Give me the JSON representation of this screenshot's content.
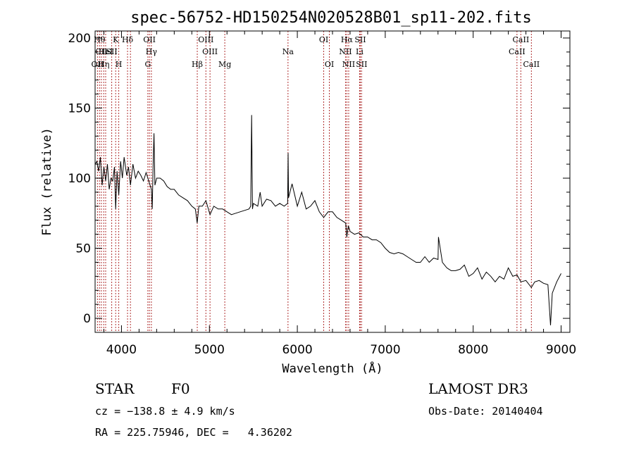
{
  "chart_data": {
    "type": "line",
    "title": "spec-56752-HD150254N020528B01_sp11-202.fits",
    "xlabel": "Wavelength (Å)",
    "ylabel": "Flux (relative)",
    "xlim": [
      3700,
      9100
    ],
    "ylim": [
      -10,
      205
    ],
    "xticks": [
      4000,
      5000,
      6000,
      7000,
      8000,
      9000
    ],
    "yticks": [
      0,
      50,
      100,
      150,
      200
    ],
    "grid": false,
    "line_color": "#000000",
    "marker_color": "#b03030",
    "series": [
      {
        "x": [
          3700,
          3720,
          3740,
          3760,
          3780,
          3800,
          3820,
          3840,
          3860,
          3880,
          3900,
          3920,
          3934,
          3950,
          3969,
          3990,
          4010,
          4030,
          4060,
          4080,
          4102,
          4130,
          4160,
          4190,
          4220,
          4250,
          4280,
          4300,
          4320,
          4340,
          4350,
          4360,
          4370,
          4380,
          4400,
          4440,
          4480,
          4520,
          4560,
          4600,
          4650,
          4700,
          4750,
          4800,
          4840,
          4861,
          4880,
          4920,
          4960,
          5007,
          5050,
          5100,
          5150,
          5200,
          5250,
          5300,
          5350,
          5400,
          5450,
          5470,
          5480,
          5490,
          5500,
          5550,
          5577,
          5600,
          5650,
          5700,
          5750,
          5800,
          5850,
          5890,
          5895,
          5900,
          5940,
          6000,
          6050,
          6100,
          6150,
          6200,
          6250,
          6300,
          6350,
          6400,
          6450,
          6500,
          6550,
          6563,
          6580,
          6600,
          6650,
          6700,
          6750,
          6800,
          6850,
          6900,
          6950,
          7000,
          7050,
          7100,
          7150,
          7200,
          7250,
          7300,
          7350,
          7400,
          7450,
          7500,
          7550,
          7600,
          7605,
          7650,
          7700,
          7750,
          7800,
          7850,
          7900,
          7950,
          8000,
          8050,
          8100,
          8150,
          8200,
          8250,
          8300,
          8350,
          8400,
          8450,
          8498,
          8542,
          8600,
          8662,
          8700,
          8750,
          8800,
          8850,
          8880,
          8900,
          8950,
          9000
        ],
        "y": [
          110,
          112,
          105,
          115,
          95,
          108,
          98,
          110,
          92,
          100,
          98,
          108,
          78,
          105,
          88,
          112,
          100,
          115,
          102,
          108,
          95,
          110,
          100,
          105,
          102,
          98,
          104,
          100,
          96,
          92,
          78,
          110,
          132,
          95,
          100,
          100,
          98,
          94,
          92,
          92,
          88,
          86,
          84,
          80,
          78,
          68,
          80,
          80,
          84,
          74,
          80,
          78,
          78,
          76,
          74,
          75,
          76,
          77,
          78,
          80,
          145,
          78,
          82,
          80,
          90,
          80,
          85,
          84,
          80,
          82,
          80,
          82,
          118,
          86,
          96,
          80,
          90,
          78,
          80,
          84,
          76,
          72,
          76,
          76,
          72,
          70,
          68,
          58,
          66,
          62,
          60,
          61,
          58,
          58,
          56,
          56,
          54,
          50,
          47,
          46,
          47,
          46,
          44,
          42,
          40,
          40,
          44,
          40,
          43,
          42,
          58,
          40,
          36,
          34,
          34,
          35,
          38,
          30,
          32,
          36,
          28,
          33,
          30,
          26,
          30,
          28,
          36,
          30,
          31,
          26,
          27,
          22,
          26,
          27,
          25,
          24,
          -5,
          18,
          26,
          32
        ]
      }
    ],
    "line_markers": [
      {
        "x": 3727,
        "label": "OII",
        "row": 2
      },
      {
        "x": 3750,
        "label": "Hθ",
        "row": 0
      },
      {
        "x": 3771,
        "label": "CII",
        "row": 1
      },
      {
        "x": 3798,
        "label": "Hη",
        "row": 2
      },
      {
        "x": 3820,
        "label": "HeI",
        "row": 1
      },
      {
        "x": 3889,
        "label": "SII",
        "row": 1
      },
      {
        "x": 3934,
        "label": "K",
        "row": 0
      },
      {
        "x": 3969,
        "label": "H",
        "row": 2
      },
      {
        "x": 4069,
        "label": "Hδ",
        "row": 0
      },
      {
        "x": 4102,
        "label": "",
        "row": 0
      },
      {
        "x": 4300,
        "label": "G",
        "row": 2
      },
      {
        "x": 4318,
        "label": "OII",
        "row": 0
      },
      {
        "x": 4340,
        "label": "Hγ",
        "row": 1
      },
      {
        "x": 4862,
        "label": "Hβ",
        "row": 2
      },
      {
        "x": 4960,
        "label": "OIII",
        "row": 0
      },
      {
        "x": 5007,
        "label": "OIII",
        "row": 1
      },
      {
        "x": 5175,
        "label": "Mg",
        "row": 2
      },
      {
        "x": 5894,
        "label": "Na",
        "row": 1
      },
      {
        "x": 6300,
        "label": "OI",
        "row": 0
      },
      {
        "x": 6364,
        "label": "OI",
        "row": 2
      },
      {
        "x": 6548,
        "label": "NII",
        "row": 1
      },
      {
        "x": 6563,
        "label": "Hα",
        "row": 0
      },
      {
        "x": 6584,
        "label": "NII",
        "row": 2
      },
      {
        "x": 6708,
        "label": "Li",
        "row": 1
      },
      {
        "x": 6716,
        "label": "SII",
        "row": 0
      },
      {
        "x": 6731,
        "label": "SII",
        "row": 2
      },
      {
        "x": 8498,
        "label": "CaII",
        "row": 1
      },
      {
        "x": 8542,
        "label": "CaII",
        "row": 0
      },
      {
        "x": 8662,
        "label": "CaII",
        "row": 2
      }
    ]
  },
  "footer": {
    "object_class": "STAR",
    "subclass": "F0",
    "survey": "LAMOST DR3",
    "cz": "cz = −138.8 ± 4.9 km/s",
    "obs_date": "Obs-Date: 20140404",
    "coords": "RA = 225.75946, DEC =   4.36202"
  }
}
